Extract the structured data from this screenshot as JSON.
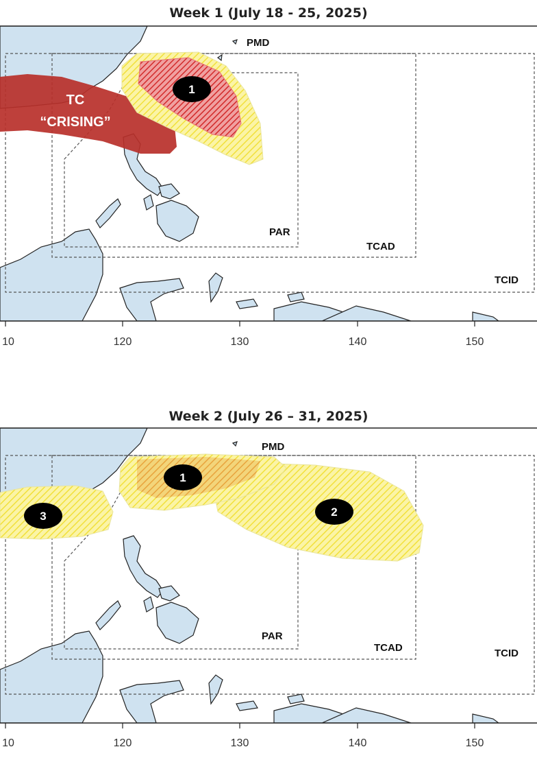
{
  "week1": {
    "title": "Week 1 (July 18 - 25, 2025)",
    "regions": {
      "pmd": "PMD",
      "par": "PAR",
      "tcad": "TCAD",
      "tcid": "TCID"
    },
    "tc_label_line1": "TC",
    "tc_label_line2": "“CRISING”",
    "areas": [
      {
        "id": "1",
        "level": "high",
        "color": "#c62828"
      }
    ]
  },
  "week2": {
    "title": "Week 2 (July 26 – 31, 2025)",
    "regions": {
      "pmd": "PMD",
      "par": "PAR",
      "tcad": "TCAD",
      "tcid": "TCID"
    },
    "areas": [
      {
        "id": "1",
        "level": "moderate",
        "color": "#e8a33c"
      },
      {
        "id": "2",
        "level": "low",
        "color": "#f5e94a"
      },
      {
        "id": "3",
        "level": "low",
        "color": "#f5e94a"
      }
    ]
  },
  "longitude_ticks": [
    "10",
    "120",
    "130",
    "140",
    "150"
  ],
  "colors": {
    "land": "#cfe2f0",
    "ocean": "#ffffff",
    "high_potential": "#c62828",
    "low_potential": "#f5e94a",
    "tc_track": "#b8302a"
  }
}
